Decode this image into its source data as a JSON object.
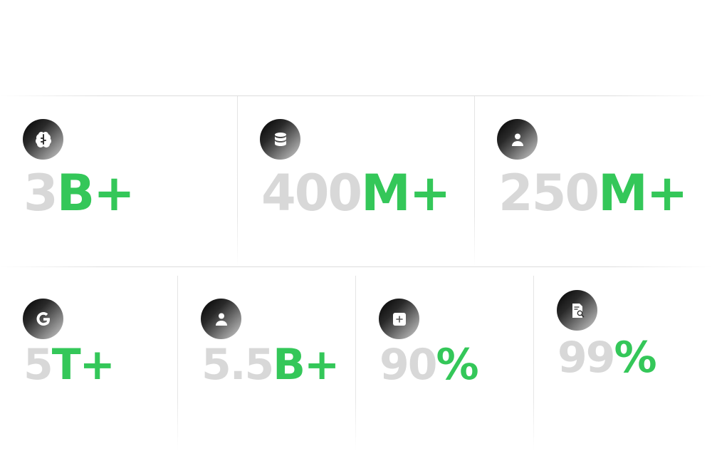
{
  "stats_top": [
    {
      "icon": "brain-icon",
      "number": "3",
      "unit": "B+"
    },
    {
      "icon": "database-icon",
      "number": "400",
      "unit": "M+"
    },
    {
      "icon": "user-icon",
      "number": "250",
      "unit": "M+"
    }
  ],
  "stats_bottom": [
    {
      "icon": "google-icon",
      "number": "5",
      "unit": "T+"
    },
    {
      "icon": "user-icon",
      "number": "5.5",
      "unit": "B+"
    },
    {
      "icon": "add-square-icon",
      "number": "90",
      "unit": "%"
    },
    {
      "icon": "document-search-icon",
      "number": "99",
      "unit": "%"
    }
  ],
  "colors": {
    "number": "#d8d8d8",
    "accent": "#34c759",
    "icon_gradient_start": "#000000",
    "icon_gradient_end": "#cfcfcf"
  }
}
